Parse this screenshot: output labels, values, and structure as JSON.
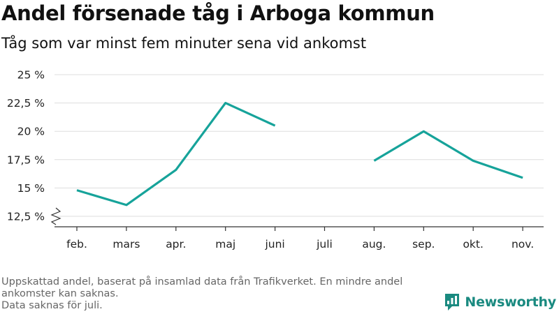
{
  "header": {
    "title": "Andel försenade tåg i Arboga kommun",
    "subtitle": "Tåg som var minst fem minuter sena vid ankomst"
  },
  "footer": {
    "note_line1": "Uppskattad andel, baserat på insamlad data från Trafikverket. En mindre andel ankomster kan saknas.",
    "note_line2": "Data saknas för juli."
  },
  "brand": {
    "name": "Newsworthy",
    "icon": "newsworthy-logo-icon"
  },
  "colors": {
    "line": "#16a39a",
    "grid": "#dddddd",
    "axis": "#333333",
    "brand": "#1a8a80"
  },
  "chart_data": {
    "type": "line",
    "title": "Andel försenade tåg i Arboga kommun",
    "subtitle": "Tåg som var minst fem minuter sena vid ankomst",
    "categories": [
      "feb.",
      "mars",
      "apr.",
      "maj",
      "juni",
      "juli",
      "aug.",
      "sep.",
      "okt.",
      "nov."
    ],
    "series": [
      {
        "values": [
          14.8,
          13.5,
          16.6,
          22.5,
          20.5,
          null,
          17.4,
          20.0,
          17.4,
          15.9
        ]
      }
    ],
    "yticks": [
      12.5,
      15,
      17.5,
      20,
      22.5,
      25
    ],
    "ytick_labels": [
      "12,5 %",
      "15 %",
      "17,5 %",
      "20 %",
      "22,5 %",
      "25 %"
    ],
    "ylim": [
      12.5,
      25
    ],
    "axis_break": true,
    "grid": true,
    "legend": "none"
  }
}
